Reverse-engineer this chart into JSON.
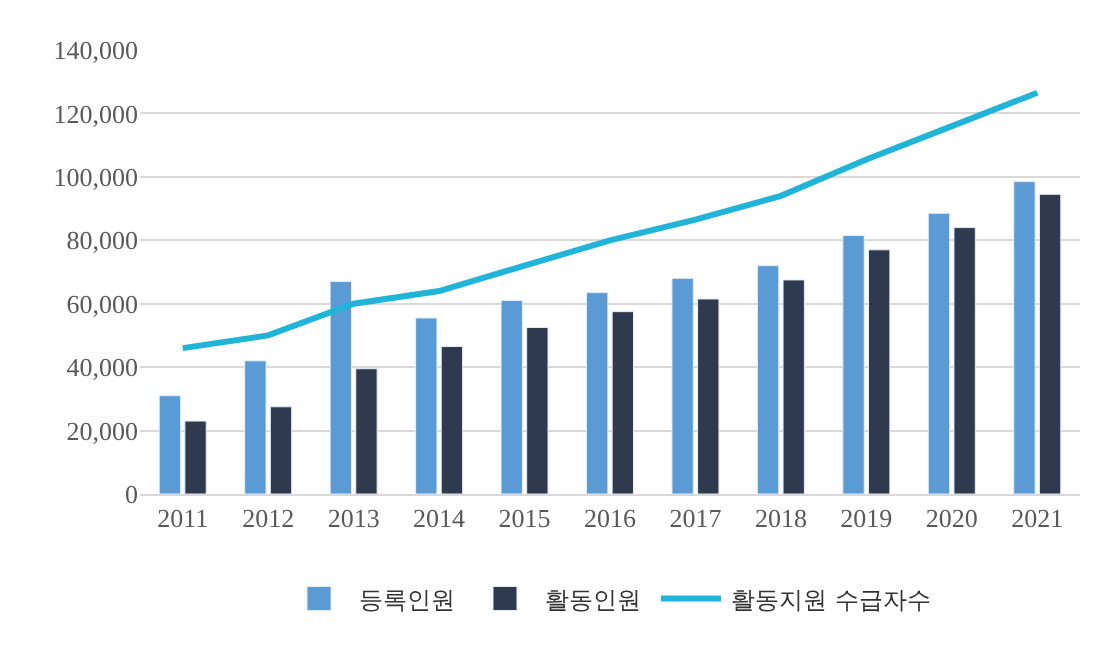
{
  "chart_data": {
    "type": "bar",
    "categories": [
      "2011",
      "2012",
      "2013",
      "2014",
      "2015",
      "2016",
      "2017",
      "2018",
      "2019",
      "2020",
      "2021"
    ],
    "series": [
      {
        "name": "등록인원",
        "color": "#5b9bd5",
        "values": [
          31000,
          42000,
          67000,
          55500,
          61000,
          63500,
          68000,
          72000,
          81500,
          88500,
          98500
        ]
      },
      {
        "name": "활동인원",
        "color": "#2f3a4f",
        "values": [
          23000,
          27500,
          39500,
          46500,
          52500,
          57500,
          61500,
          67500,
          77000,
          84000,
          94500
        ]
      },
      {
        "name": "활동지원 수급자수",
        "type": "line",
        "color": "#1fb4d8",
        "values": [
          46000,
          50000,
          60000,
          64000,
          72000,
          80000,
          86500,
          94000,
          105500,
          116000,
          126500
        ]
      }
    ],
    "ylim": [
      0,
      140000
    ],
    "yticks": [
      {
        "value": 0,
        "label": "0"
      },
      {
        "value": 20000,
        "label": "20,000"
      },
      {
        "value": 40000,
        "label": "40,000"
      },
      {
        "value": 60000,
        "label": "60,000"
      },
      {
        "value": 80000,
        "label": "80,000"
      },
      {
        "value": 100000,
        "label": "100,000"
      },
      {
        "value": 120000,
        "label": "120,000"
      },
      {
        "value": 140000,
        "label": "140,000"
      }
    ],
    "grid": "y",
    "legend": "bottom",
    "marker": "none",
    "line_style": "solid"
  }
}
